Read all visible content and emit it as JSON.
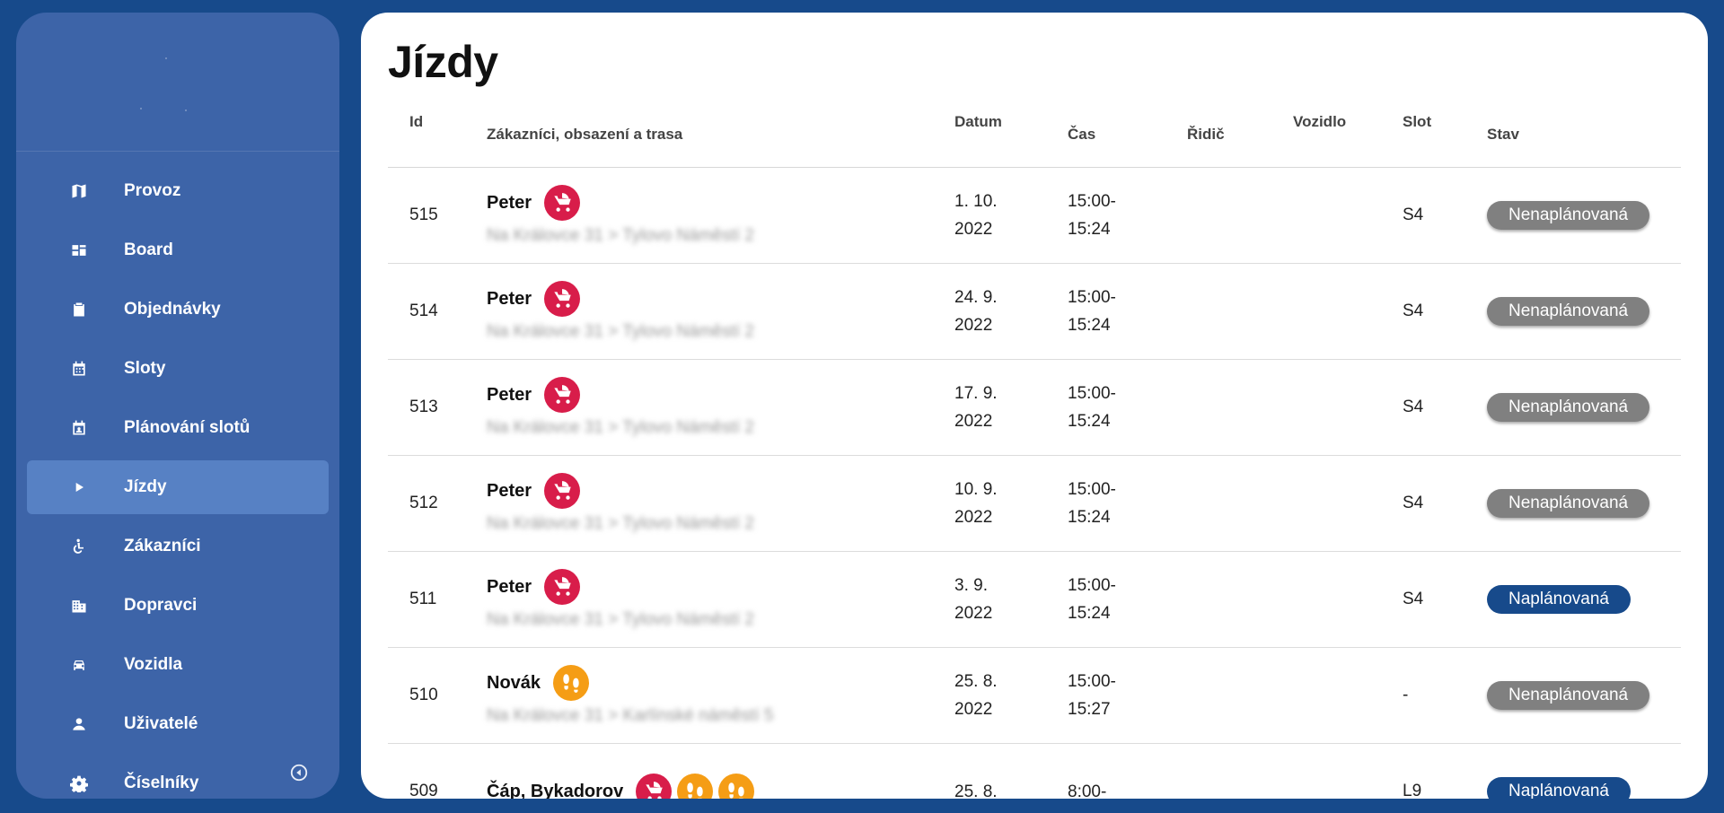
{
  "sidebar": {
    "items": [
      {
        "label": "Provoz",
        "icon": "map-icon",
        "active": false
      },
      {
        "label": "Board",
        "icon": "dashboard-icon",
        "active": false
      },
      {
        "label": "Objednávky",
        "icon": "clipboard-icon",
        "active": false
      },
      {
        "label": "Sloty",
        "icon": "calendar-icon",
        "active": false
      },
      {
        "label": "Plánování slotů",
        "icon": "calendar-person-icon",
        "active": false
      },
      {
        "label": "Jízdy",
        "icon": "play-icon",
        "active": true
      },
      {
        "label": "Zákazníci",
        "icon": "accessible-icon",
        "active": false
      },
      {
        "label": "Dopravci",
        "icon": "building-icon",
        "active": false
      },
      {
        "label": "Vozidla",
        "icon": "car-icon",
        "active": false
      },
      {
        "label": "Uživatelé",
        "icon": "person-icon",
        "active": false
      },
      {
        "label": "Číselníky",
        "icon": "gear-icon",
        "active": false
      }
    ],
    "collapse_icon": "collapse-left-icon"
  },
  "main": {
    "title": "Jízdy",
    "columns": {
      "id": "Id",
      "customers": "Zákazníci, obsazení a trasa",
      "date": "Datum",
      "time": "Čas",
      "driver": "Řidič",
      "vehicle": "Vozidlo",
      "slot": "Slot",
      "status": "Stav"
    },
    "rows": [
      {
        "id": "515",
        "name": "Peter",
        "icons": [
          "stroller-icon"
        ],
        "route": "Na Královce 31 > Tylovo Náměstí 2",
        "date_line1": "1. 10.",
        "date_line2": "2022",
        "time_line1": "15:00-",
        "time_line2": "15:24",
        "driver": "",
        "vehicle": "",
        "slot": "S4",
        "status": "Nenaplánovaná",
        "status_color": "#808080"
      },
      {
        "id": "514",
        "name": "Peter",
        "icons": [
          "stroller-icon"
        ],
        "route": "Na Královce 31 > Tylovo Náměstí 2",
        "date_line1": "24. 9.",
        "date_line2": "2022",
        "time_line1": "15:00-",
        "time_line2": "15:24",
        "driver": "",
        "vehicle": "",
        "slot": "S4",
        "status": "Nenaplánovaná",
        "status_color": "#808080"
      },
      {
        "id": "513",
        "name": "Peter",
        "icons": [
          "stroller-icon"
        ],
        "route": "Na Královce 31 > Tylovo Náměstí 2",
        "date_line1": "17. 9.",
        "date_line2": "2022",
        "time_line1": "15:00-",
        "time_line2": "15:24",
        "driver": "",
        "vehicle": "",
        "slot": "S4",
        "status": "Nenaplánovaná",
        "status_color": "#808080"
      },
      {
        "id": "512",
        "name": "Peter",
        "icons": [
          "stroller-icon"
        ],
        "route": "Na Královce 31 > Tylovo Náměstí 2",
        "date_line1": "10. 9.",
        "date_line2": "2022",
        "time_line1": "15:00-",
        "time_line2": "15:24",
        "driver": "",
        "vehicle": "",
        "slot": "S4",
        "status": "Nenaplánovaná",
        "status_color": "#808080"
      },
      {
        "id": "511",
        "name": "Peter",
        "icons": [
          "stroller-icon"
        ],
        "route": "Na Královce 31 > Tylovo Náměstí 2",
        "date_line1": "3. 9.",
        "date_line2": "2022",
        "time_line1": "15:00-",
        "time_line2": "15:24",
        "driver": "",
        "vehicle": "",
        "slot": "S4",
        "status": "Naplánovaná",
        "status_color": "#174a8b"
      },
      {
        "id": "510",
        "name": "Novák",
        "icons": [
          "footsteps-icon"
        ],
        "route": "Na Královce 31 > Karlínské náměstí 5",
        "date_line1": "25. 8.",
        "date_line2": "2022",
        "time_line1": "15:00-",
        "time_line2": "15:27",
        "driver": "",
        "vehicle": "",
        "slot": "-",
        "status": "Nenaplánovaná",
        "status_color": "#808080"
      },
      {
        "id": "509",
        "name": "Čáp, Bykadorov",
        "icons": [
          "stroller-icon",
          "footsteps-icon",
          "footsteps-icon"
        ],
        "route": "",
        "date_line1": "25. 8.",
        "date_line2": "",
        "time_line1": "8:00-",
        "time_line2": "",
        "driver": "",
        "vehicle": "",
        "slot": "L9",
        "status": "Naplánovaná",
        "status_color": "#174a8b"
      }
    ]
  }
}
